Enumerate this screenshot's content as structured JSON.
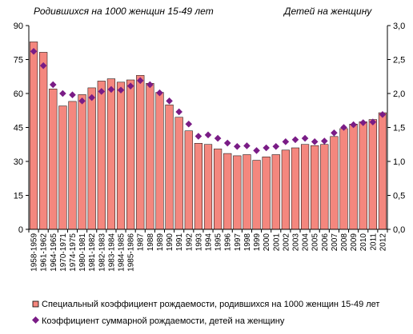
{
  "chart_data": {
    "type": "bar",
    "left_axis_title": "Родившихся на 1000 женщин 15-49 лет",
    "right_axis_title": "Детей на женщину",
    "categories": [
      "1958-1959",
      "1961-1962",
      "1964-1965",
      "1970-1971",
      "1974-1975",
      "1980-1981",
      "1981-1982",
      "1982-1983",
      "1983-1984",
      "1984-1985",
      "1985-1986",
      "1987",
      "1988",
      "1989",
      "1990",
      "1991",
      "1992",
      "1993",
      "1994",
      "1995",
      "1996",
      "1997",
      "1998",
      "1999",
      "2000",
      "2001",
      "2002",
      "2003",
      "2004",
      "2005",
      "2006",
      "2007",
      "2008",
      "2009",
      "2010",
      "2011",
      "2012"
    ],
    "y_left_ticks": [
      "0",
      "15",
      "30",
      "45",
      "60",
      "75",
      "90"
    ],
    "y_right_ticks": [
      "0,0",
      "0,5",
      "1,0",
      "1,5",
      "2,0",
      "2,5",
      "3,0"
    ],
    "ylim_left": [
      0,
      90
    ],
    "ylim_right": [
      0,
      3.0
    ],
    "grid": false,
    "legend_position": "bottom",
    "bar_color": "#f4877e",
    "bar_edge_color": "#000000",
    "marker_color": "#7a1c86",
    "series": [
      {
        "name": "Специальный коэффициент рождаемости, родившихся на 1000 женщин 15-49 лет",
        "type": "bar",
        "axis": "left",
        "values": [
          82.8,
          78.2,
          62.0,
          54.5,
          56.5,
          59.5,
          62.5,
          65.5,
          66.5,
          65.0,
          66.0,
          68.0,
          64.5,
          60.5,
          55.0,
          49.5,
          43.5,
          38.0,
          37.5,
          35.5,
          33.5,
          32.5,
          33.0,
          30.5,
          32.0,
          33.0,
          35.0,
          36.0,
          37.5,
          37.0,
          37.5,
          41.0,
          44.5,
          46.5,
          47.5,
          48.5,
          51.5
        ]
      },
      {
        "name": "Коэффициент суммарной рождаемости, детей на женщину",
        "type": "scatter",
        "axis": "right",
        "values": [
          2.62,
          2.41,
          2.13,
          2.0,
          1.98,
          1.89,
          1.94,
          2.03,
          2.06,
          2.05,
          2.11,
          2.19,
          2.13,
          2.01,
          1.89,
          1.73,
          1.55,
          1.37,
          1.39,
          1.34,
          1.27,
          1.22,
          1.23,
          1.16,
          1.2,
          1.22,
          1.29,
          1.32,
          1.34,
          1.29,
          1.3,
          1.42,
          1.5,
          1.54,
          1.57,
          1.58,
          1.69
        ]
      }
    ]
  }
}
